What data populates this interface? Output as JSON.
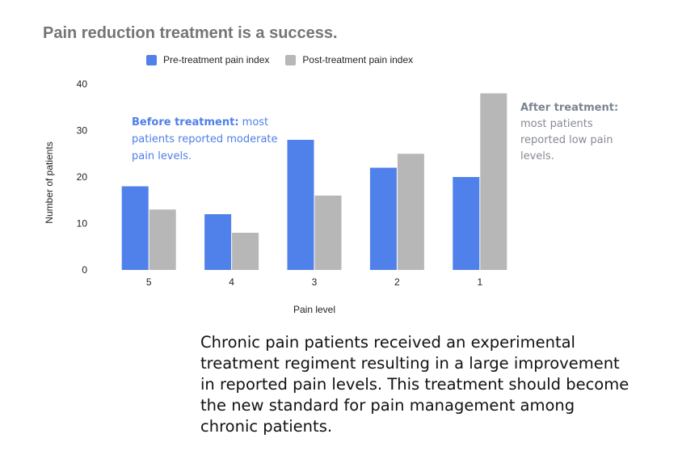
{
  "colors": {
    "pre": "#5081ea",
    "post": "#b7b7b7"
  },
  "chart_data": {
    "type": "bar",
    "title": "Pain reduction treatment is a success.",
    "xlabel": "Pain level",
    "ylabel": "Number of patients",
    "categories": [
      "5",
      "4",
      "3",
      "2",
      "1"
    ],
    "series": [
      {
        "name": "Pre-treatment pain index",
        "values": [
          18,
          12,
          28,
          22,
          20
        ]
      },
      {
        "name": "Post-treatment pain index",
        "values": [
          13,
          8,
          16,
          25,
          38
        ]
      }
    ],
    "ylim": [
      0,
      40
    ],
    "yticks": [
      "0",
      "10",
      "20",
      "30",
      "40"
    ],
    "legend": "top",
    "grid": false
  },
  "annotations": {
    "left_heading": "Before treatment:",
    "left_body": " most patients reported moderate pain levels.",
    "right_heading": "After treatment:",
    "right_body": "most patients reported low  pain levels."
  },
  "caption": "Chronic pain patients received an experimental treatment regiment resulting in a large improvement in reported pain levels. This treatment should become the new standard for pain management among chronic patients."
}
